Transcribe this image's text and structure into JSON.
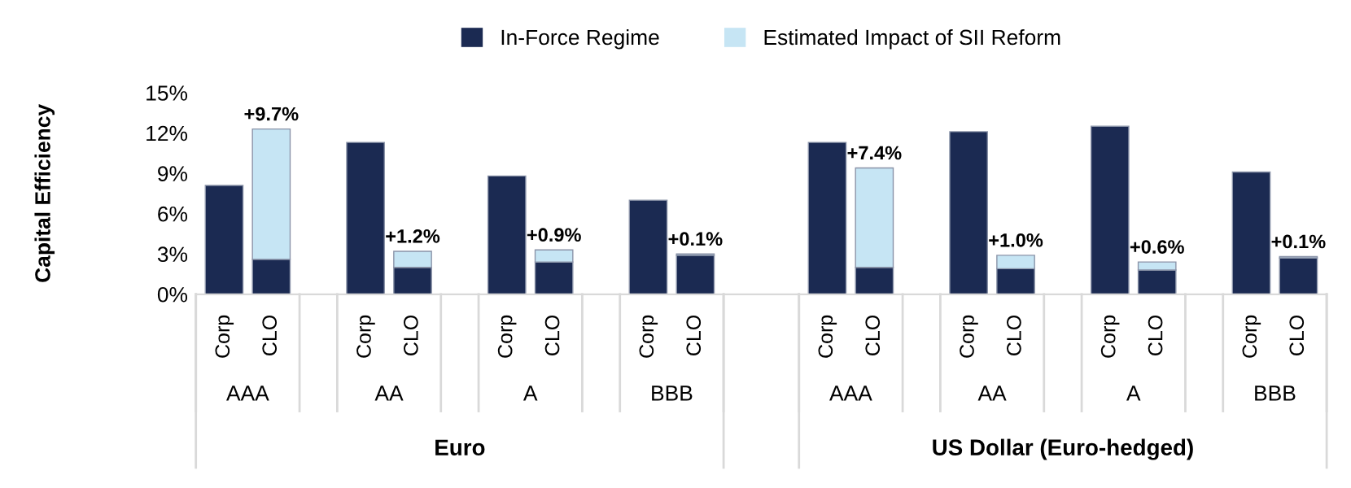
{
  "chart_data": {
    "type": "bar",
    "stacked": true,
    "ylabel": "Capital Efficiency",
    "categories": [
      "Corp",
      "CLO",
      "Corp",
      "CLO",
      "Corp",
      "CLO",
      "Corp",
      "CLO",
      "Corp",
      "CLO",
      "Corp",
      "CLO",
      "Corp",
      "CLO",
      "Corp",
      "CLO"
    ],
    "series": [
      {
        "name": "In-Force Regime",
        "color": "#1b2a52",
        "values": [
          8.1,
          2.6,
          11.3,
          2.0,
          8.8,
          2.4,
          7.0,
          2.9,
          11.3,
          2.0,
          12.1,
          1.9,
          12.5,
          1.8,
          9.1,
          2.7
        ]
      },
      {
        "name": "Estimated Impact of SII Reform",
        "color": "#c6e5f4",
        "values": [
          null,
          9.7,
          null,
          1.2,
          null,
          0.9,
          null,
          0.1,
          null,
          7.4,
          null,
          1.0,
          null,
          0.6,
          null,
          0.1
        ],
        "value_labels": [
          null,
          "+9.7%",
          null,
          "+1.2%",
          null,
          "+0.9%",
          null,
          "+0.1%",
          null,
          "+7.4%",
          null,
          "+1.0%",
          null,
          "+0.6%",
          null,
          "+0.1%"
        ]
      }
    ],
    "ylim": [
      0,
      15
    ],
    "yticks": [
      {
        "value": 0,
        "label": "0%"
      },
      {
        "value": 3,
        "label": "3%"
      },
      {
        "value": 6,
        "label": "6%"
      },
      {
        "value": 9,
        "label": "9%"
      },
      {
        "value": 12,
        "label": "12%"
      },
      {
        "value": 15,
        "label": "15%"
      }
    ],
    "annotations": [
      "AAA",
      "AA",
      "A",
      "BBB",
      "AAA",
      "AA",
      "A",
      "BBB",
      "Euro",
      "US Dollar (Euro-hedged)"
    ],
    "legend": "top",
    "grid": false
  }
}
